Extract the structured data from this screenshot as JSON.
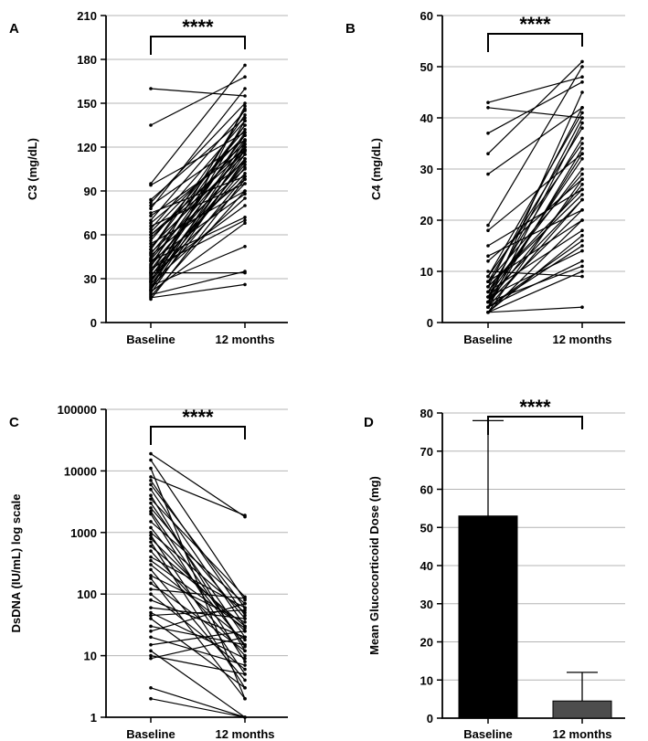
{
  "chart_data": [
    {
      "panel": "A",
      "type": "line",
      "ylabel": "C3 (mg/dL)",
      "categories": [
        "Baseline",
        "12 months"
      ],
      "yticks": [
        0,
        30,
        60,
        90,
        120,
        150,
        180,
        210
      ],
      "ytick_labels": [
        "0",
        "30",
        "60",
        "90",
        "120",
        "150",
        "180",
        "210"
      ],
      "ylim": [
        0,
        210
      ],
      "scale": "linear",
      "grid": true,
      "significance": "****",
      "series": [
        [
          160,
          155
        ],
        [
          135,
          168
        ],
        [
          95,
          176
        ],
        [
          94,
          130
        ],
        [
          84,
          140
        ],
        [
          82,
          150
        ],
        [
          80,
          125
        ],
        [
          78,
          160
        ],
        [
          75,
          100
        ],
        [
          73,
          118
        ],
        [
          70,
          145
        ],
        [
          68,
          122
        ],
        [
          66,
          95
        ],
        [
          64,
          138
        ],
        [
          62,
          128
        ],
        [
          60,
          110
        ],
        [
          58,
          120
        ],
        [
          56,
          132
        ],
        [
          54,
          90
        ],
        [
          52,
          115
        ],
        [
          50,
          142
        ],
        [
          48,
          105
        ],
        [
          47,
          125
        ],
        [
          46,
          98
        ],
        [
          44,
          135
        ],
        [
          43,
          118
        ],
        [
          42,
          88
        ],
        [
          40,
          128
        ],
        [
          39,
          112
        ],
        [
          38,
          146
        ],
        [
          37,
          70
        ],
        [
          36,
          120
        ],
        [
          35,
          102
        ],
        [
          34,
          130
        ],
        [
          33,
          80
        ],
        [
          32,
          108
        ],
        [
          31,
          124
        ],
        [
          30,
          95
        ],
        [
          29,
          115
        ],
        [
          28,
          138
        ],
        [
          27,
          85
        ],
        [
          26,
          110
        ],
        [
          25,
          52
        ],
        [
          24,
          122
        ],
        [
          23,
          100
        ],
        [
          22,
          118
        ],
        [
          21,
          68
        ],
        [
          20,
          112
        ],
        [
          19,
          35
        ],
        [
          18,
          90
        ],
        [
          17,
          26
        ],
        [
          16,
          98
        ],
        [
          34,
          34
        ],
        [
          42,
          72
        ],
        [
          50,
          135
        ],
        [
          28,
          106
        ],
        [
          22,
          148
        ],
        [
          60,
          117
        ]
      ]
    },
    {
      "panel": "B",
      "type": "line",
      "ylabel": "C4 (mg/dL)",
      "categories": [
        "Baseline",
        "12 months"
      ],
      "yticks": [
        0,
        10,
        20,
        30,
        40,
        50,
        60
      ],
      "ytick_labels": [
        "0",
        "10",
        "20",
        "30",
        "40",
        "50",
        "60"
      ],
      "ylim": [
        0,
        60
      ],
      "scale": "linear",
      "grid": true,
      "significance": "****",
      "series": [
        [
          43,
          48
        ],
        [
          42,
          40
        ],
        [
          37,
          47
        ],
        [
          33,
          51
        ],
        [
          29,
          42
        ],
        [
          19,
          50
        ],
        [
          18,
          33
        ],
        [
          15,
          26
        ],
        [
          13,
          22
        ],
        [
          12,
          28
        ],
        [
          10,
          9
        ],
        [
          9,
          41
        ],
        [
          9,
          35
        ],
        [
          8,
          38
        ],
        [
          8,
          20
        ],
        [
          7,
          42
        ],
        [
          7,
          25
        ],
        [
          6,
          30
        ],
        [
          6,
          18
        ],
        [
          5,
          40
        ],
        [
          5,
          32
        ],
        [
          5,
          14
        ],
        [
          4,
          45
        ],
        [
          4,
          27
        ],
        [
          4,
          22
        ],
        [
          4,
          11
        ],
        [
          3,
          39
        ],
        [
          3,
          34
        ],
        [
          3,
          24
        ],
        [
          3,
          16
        ],
        [
          3,
          12
        ],
        [
          2,
          3
        ],
        [
          2,
          28
        ],
        [
          2,
          20
        ],
        [
          2,
          17
        ],
        [
          2,
          10
        ],
        [
          6,
          36
        ],
        [
          7,
          26
        ],
        [
          5,
          24
        ],
        [
          3,
          15
        ],
        [
          8,
          29
        ],
        [
          4,
          33
        ]
      ]
    },
    {
      "panel": "C",
      "type": "line",
      "ylabel": "DsDNA (IU/mL) log scale",
      "categories": [
        "Baseline",
        "12 months"
      ],
      "yticks": [
        1,
        10,
        100,
        1000,
        10000,
        100000
      ],
      "ytick_labels": [
        "1",
        "10",
        "100",
        "1000",
        "10000",
        "100000"
      ],
      "ylim": [
        1,
        100000
      ],
      "scale": "log",
      "grid": true,
      "significance": "****",
      "series": [
        [
          19000,
          1800
        ],
        [
          15000,
          80
        ],
        [
          11000,
          2
        ],
        [
          8000,
          1900
        ],
        [
          6000,
          60
        ],
        [
          5000,
          30
        ],
        [
          4000,
          12
        ],
        [
          3500,
          90
        ],
        [
          3000,
          20
        ],
        [
          2500,
          40
        ],
        [
          2000,
          8
        ],
        [
          1500,
          70
        ],
        [
          1200,
          15
        ],
        [
          1000,
          50
        ],
        [
          900,
          5
        ],
        [
          800,
          25
        ],
        [
          600,
          30
        ],
        [
          500,
          10
        ],
        [
          400,
          60
        ],
        [
          300,
          18
        ],
        [
          250,
          4
        ],
        [
          200,
          35
        ],
        [
          150,
          12
        ],
        [
          120,
          85
        ],
        [
          100,
          6
        ],
        [
          80,
          20
        ],
        [
          60,
          40
        ],
        [
          50,
          9
        ],
        [
          40,
          3
        ],
        [
          30,
          15
        ],
        [
          25,
          70
        ],
        [
          20,
          7
        ],
        [
          15,
          25
        ],
        [
          12,
          1
        ],
        [
          10,
          5
        ],
        [
          9,
          20
        ],
        [
          3,
          1
        ],
        [
          2,
          1
        ],
        [
          7000,
          45
        ],
        [
          2200,
          14
        ],
        [
          700,
          3
        ],
        [
          350,
          28
        ],
        [
          180,
          2
        ],
        [
          45,
          55
        ]
      ]
    },
    {
      "panel": "D",
      "type": "bar",
      "ylabel": "Mean Glucocorticoid Dose (mg)",
      "categories": [
        "Baseline",
        "12 months"
      ],
      "values": [
        53,
        4.5
      ],
      "error_upper": [
        78,
        12
      ],
      "bar_colors": [
        "#000000",
        "#4d4d4d"
      ],
      "yticks": [
        0,
        10,
        20,
        30,
        40,
        50,
        60,
        70,
        80
      ],
      "ytick_labels": [
        "0",
        "10",
        "20",
        "30",
        "40",
        "50",
        "60",
        "70",
        "80"
      ],
      "ylim": [
        0,
        80
      ],
      "scale": "linear",
      "grid": true,
      "significance": "****"
    }
  ]
}
